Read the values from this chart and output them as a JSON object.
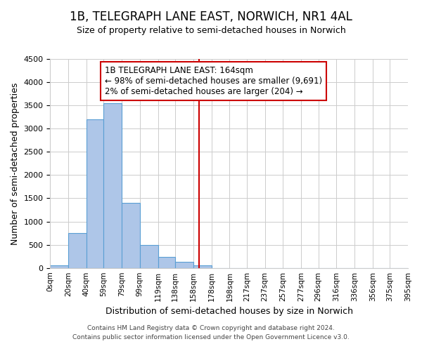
{
  "title": "1B, TELEGRAPH LANE EAST, NORWICH, NR1 4AL",
  "subtitle": "Size of property relative to semi-detached houses in Norwich",
  "xlabel": "Distribution of semi-detached houses by size in Norwich",
  "ylabel": "Number of semi-detached properties",
  "bin_edges": [
    0,
    20,
    40,
    59,
    79,
    99,
    119,
    138,
    158,
    178,
    198,
    217,
    237,
    257,
    277,
    296,
    316,
    336,
    356,
    375,
    395
  ],
  "bin_counts": [
    60,
    750,
    3200,
    3550,
    1400,
    500,
    230,
    130,
    60,
    0,
    0,
    0,
    0,
    0,
    0,
    0,
    0,
    0,
    0,
    0
  ],
  "bar_color": "#aec6e8",
  "bar_edge_color": "#5a9fd4",
  "property_line_x": 164,
  "property_line_color": "#cc0000",
  "annotation_line1": "1B TELEGRAPH LANE EAST: 164sqm",
  "annotation_line2": "← 98% of semi-detached houses are smaller (9,691)",
  "annotation_line3": "2% of semi-detached houses are larger (204) →",
  "annotation_box_edge_color": "#cc0000",
  "ylim": [
    0,
    4500
  ],
  "yticks": [
    0,
    500,
    1000,
    1500,
    2000,
    2500,
    3000,
    3500,
    4000,
    4500
  ],
  "xtick_labels": [
    "0sqm",
    "20sqm",
    "40sqm",
    "59sqm",
    "79sqm",
    "99sqm",
    "119sqm",
    "138sqm",
    "158sqm",
    "178sqm",
    "198sqm",
    "217sqm",
    "237sqm",
    "257sqm",
    "277sqm",
    "296sqm",
    "316sqm",
    "336sqm",
    "356sqm",
    "375sqm",
    "395sqm"
  ],
  "footer_line1": "Contains HM Land Registry data © Crown copyright and database right 2024.",
  "footer_line2": "Contains public sector information licensed under the Open Government Licence v3.0.",
  "bg_color": "#ffffff",
  "grid_color": "#cccccc",
  "title_fontsize": 12,
  "subtitle_fontsize": 9,
  "ylabel_fontsize": 9,
  "xlabel_fontsize": 9,
  "annotation_fontsize": 8.5,
  "footer_fontsize": 6.5
}
